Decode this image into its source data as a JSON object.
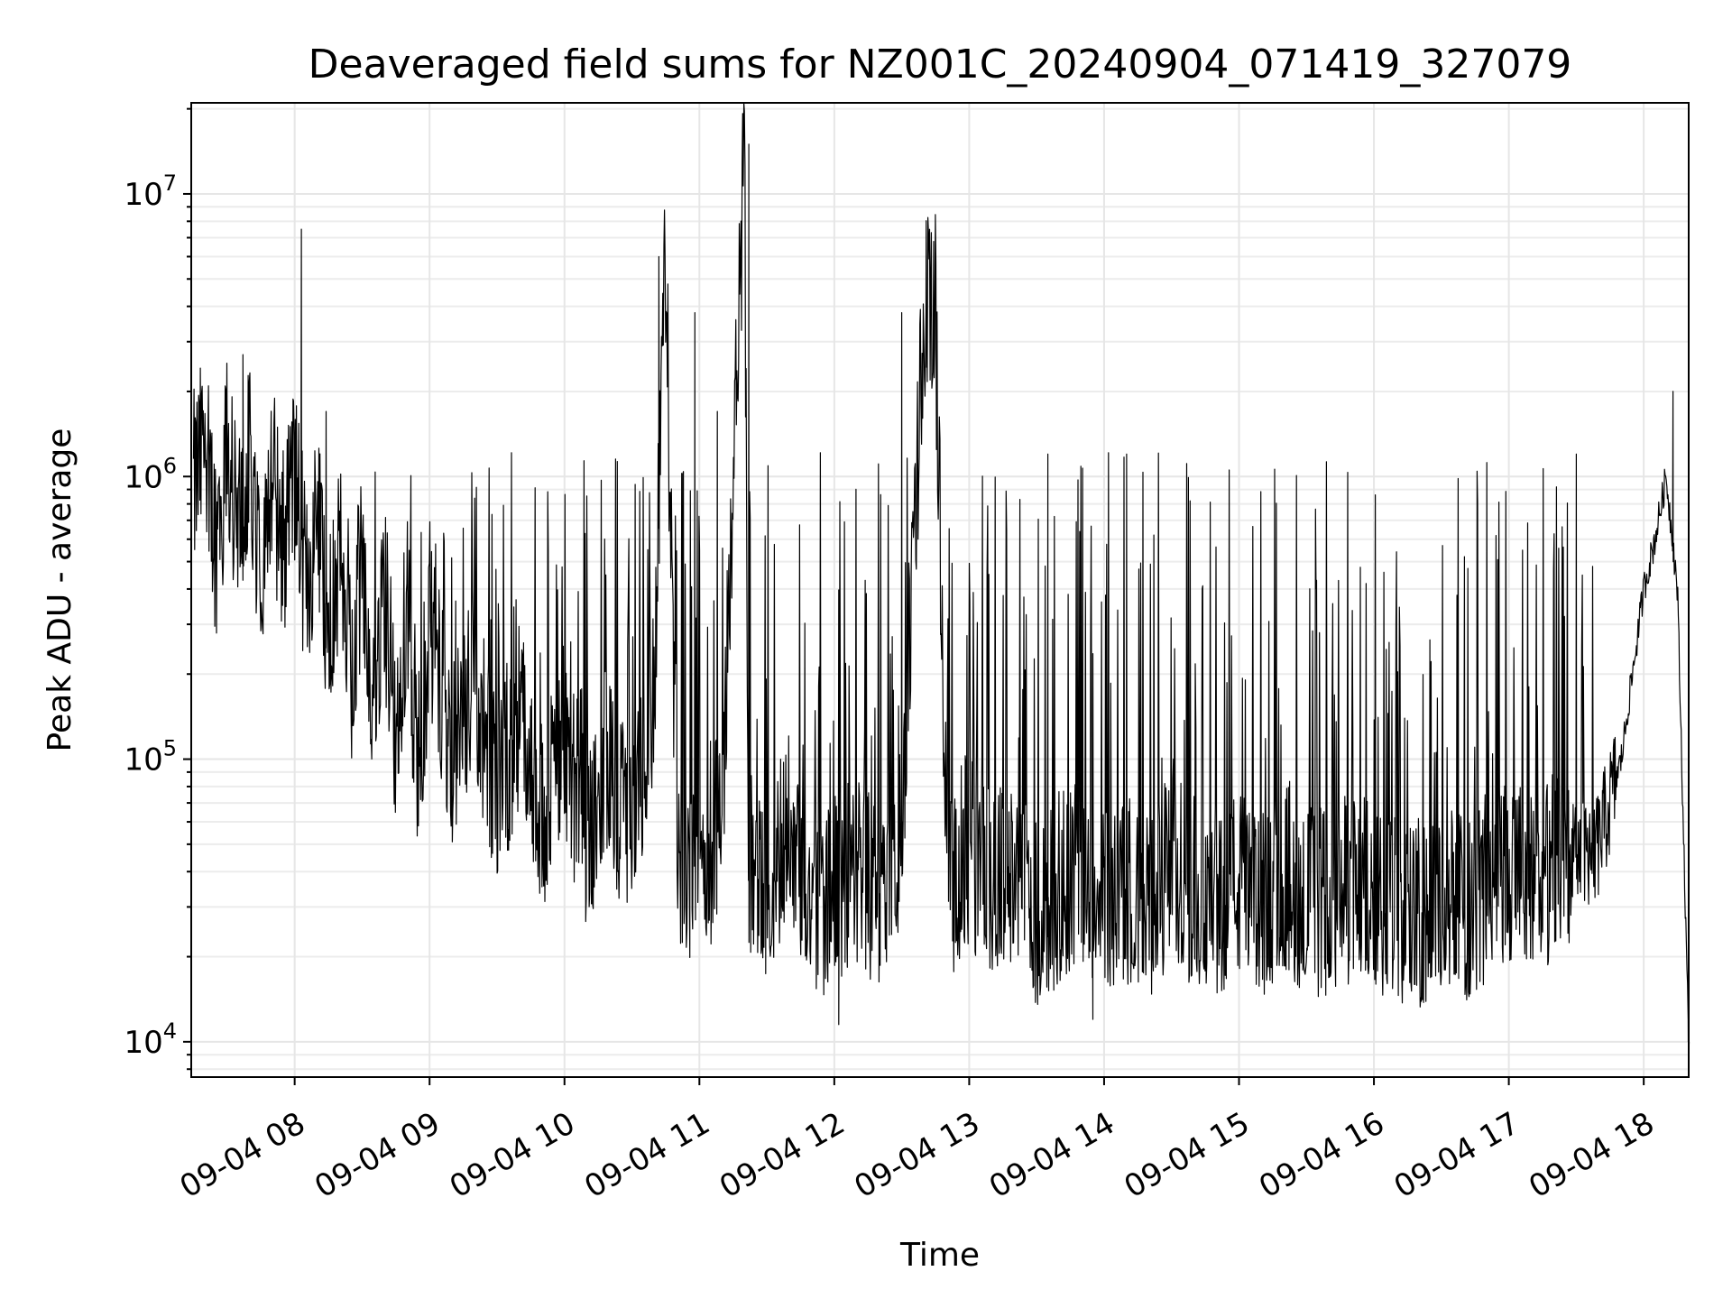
{
  "chart_data": {
    "type": "line",
    "title": "Deaveraged field sums for NZ001C_20240904_071419_327079",
    "xlabel": "Time",
    "ylabel": "Peak ADU - average",
    "yscale": "log",
    "grid": true,
    "xlim": [
      "2024-09-04 07:14",
      "2024-09-04 18:20"
    ],
    "ylim": [
      7500,
      21000000
    ],
    "x_ticks": [
      {
        "value": "2024-09-04 08:00",
        "label": "09-04 08"
      },
      {
        "value": "2024-09-04 09:00",
        "label": "09-04 09"
      },
      {
        "value": "2024-09-04 10:00",
        "label": "09-04 10"
      },
      {
        "value": "2024-09-04 11:00",
        "label": "09-04 11"
      },
      {
        "value": "2024-09-04 12:00",
        "label": "09-04 12"
      },
      {
        "value": "2024-09-04 13:00",
        "label": "09-04 13"
      },
      {
        "value": "2024-09-04 14:00",
        "label": "09-04 14"
      },
      {
        "value": "2024-09-04 15:00",
        "label": "09-04 15"
      },
      {
        "value": "2024-09-04 16:00",
        "label": "09-04 16"
      },
      {
        "value": "2024-09-04 17:00",
        "label": "09-04 17"
      },
      {
        "value": "2024-09-04 18:00",
        "label": "09-04 18"
      }
    ],
    "y_ticks": [
      {
        "value": 10000,
        "base": "10",
        "exp": "4"
      },
      {
        "value": 100000,
        "base": "10",
        "exp": "5"
      },
      {
        "value": 1000000,
        "base": "10",
        "exp": "6"
      },
      {
        "value": 10000000,
        "base": "10",
        "exp": "7"
      }
    ],
    "series": [
      {
        "x": [
          "2024-09-04 07:15",
          "2024-09-04 07:20",
          "2024-09-04 07:25",
          "2024-09-04 07:30",
          "2024-09-04 07:35",
          "2024-09-04 07:40",
          "2024-09-04 07:45",
          "2024-09-04 07:50",
          "2024-09-04 07:55",
          "2024-09-04 08:00",
          "2024-09-04 08:05",
          "2024-09-04 08:10",
          "2024-09-04 08:15",
          "2024-09-04 08:20",
          "2024-09-04 08:25",
          "2024-09-04 08:30",
          "2024-09-04 08:35",
          "2024-09-04 08:40",
          "2024-09-04 08:45",
          "2024-09-04 08:50",
          "2024-09-04 08:55",
          "2024-09-04 09:00",
          "2024-09-04 09:10",
          "2024-09-04 09:20",
          "2024-09-04 09:30",
          "2024-09-04 09:40",
          "2024-09-04 09:50",
          "2024-09-04 10:00",
          "2024-09-04 10:10",
          "2024-09-04 10:20",
          "2024-09-04 10:30",
          "2024-09-04 10:40",
          "2024-09-04 10:45",
          "2024-09-04 10:50",
          "2024-09-04 11:00",
          "2024-09-04 11:10",
          "2024-09-04 11:20",
          "2024-09-04 11:22",
          "2024-09-04 11:30",
          "2024-09-04 11:40",
          "2024-09-04 11:50",
          "2024-09-04 12:00",
          "2024-09-04 12:10",
          "2024-09-04 12:20",
          "2024-09-04 12:30",
          "2024-09-04 12:40",
          "2024-09-04 12:45",
          "2024-09-04 12:50",
          "2024-09-04 13:00",
          "2024-09-04 13:10",
          "2024-09-04 13:20",
          "2024-09-04 13:30",
          "2024-09-04 13:40",
          "2024-09-04 13:50",
          "2024-09-04 14:00",
          "2024-09-04 14:10",
          "2024-09-04 14:20",
          "2024-09-04 14:30",
          "2024-09-04 14:40",
          "2024-09-04 14:50",
          "2024-09-04 15:00",
          "2024-09-04 15:10",
          "2024-09-04 15:20",
          "2024-09-04 15:30",
          "2024-09-04 15:40",
          "2024-09-04 15:50",
          "2024-09-04 16:00",
          "2024-09-04 16:10",
          "2024-09-04 16:20",
          "2024-09-04 16:30",
          "2024-09-04 16:40",
          "2024-09-04 16:50",
          "2024-09-04 17:00",
          "2024-09-04 17:10",
          "2024-09-04 17:20",
          "2024-09-04 17:30",
          "2024-09-04 17:40",
          "2024-09-04 17:50",
          "2024-09-04 17:55",
          "2024-09-04 18:00",
          "2024-09-04 18:05",
          "2024-09-04 18:10",
          "2024-09-04 18:15",
          "2024-09-04 18:20"
        ],
        "y": [
          900000,
          1300000,
          600000,
          1200000,
          700000,
          1100000,
          500000,
          1000000,
          600000,
          1100000,
          400000,
          700000,
          300000,
          600000,
          200000,
          500000,
          150000,
          400000,
          120000,
          350000,
          100000,
          300000,
          90000,
          200000,
          70000,
          150000,
          60000,
          120000,
          50000,
          100000,
          45000,
          200000,
          6000000,
          50000,
          40000,
          60000,
          14000000,
          40000,
          35000,
          60000,
          30000,
          35000,
          40000,
          32000,
          60000,
          3800000,
          4000000,
          35000,
          50000,
          35000,
          40000,
          30000,
          35000,
          40000,
          35000,
          35000,
          30000,
          40000,
          35000,
          33000,
          35000,
          30000,
          40000,
          32000,
          30000,
          35000,
          32000,
          30000,
          28000,
          32000,
          30000,
          35000,
          40000,
          35000,
          40000,
          45000,
          50000,
          100000,
          200000,
          400000,
          600000,
          1000000,
          400000,
          10000
        ],
        "spikes": [
          {
            "x": "2024-09-04 07:37",
            "y": 2700000
          },
          {
            "x": "2024-09-04 08:03",
            "y": 7500000
          },
          {
            "x": "2024-09-04 08:14",
            "y": 1700000
          },
          {
            "x": "2024-09-04 10:42",
            "y": 6000000
          },
          {
            "x": "2024-09-04 10:58",
            "y": 3800000
          },
          {
            "x": "2024-09-04 11:08",
            "y": 1700000
          },
          {
            "x": "2024-09-04 11:22",
            "y": 15000000
          },
          {
            "x": "2024-09-04 12:30",
            "y": 3800000
          },
          {
            "x": "2024-09-04 12:41",
            "y": 3900000
          },
          {
            "x": "2024-09-04 13:35",
            "y": 1200000
          },
          {
            "x": "2024-09-04 14:10",
            "y": 1200000
          },
          {
            "x": "2024-09-04 17:30",
            "y": 1200000
          },
          {
            "x": "2024-09-04 18:13",
            "y": 2000000
          }
        ],
        "low_points": [
          {
            "x": "2024-09-04 12:02",
            "y": 11500
          },
          {
            "x": "2024-09-04 13:55",
            "y": 12000
          },
          {
            "x": "2024-09-04 18:20",
            "y": 9000
          }
        ]
      }
    ]
  }
}
